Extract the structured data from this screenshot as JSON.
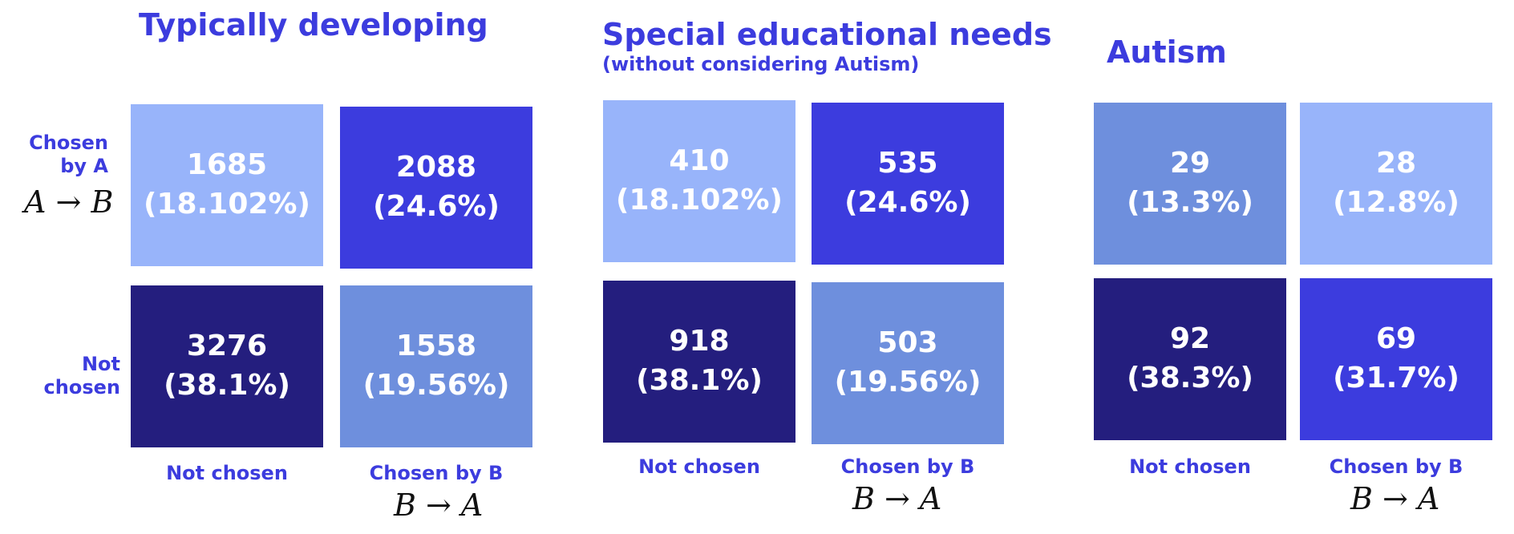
{
  "colors": {
    "lightest": "#98b4fa",
    "light": "#6e8fdd",
    "bright": "#3c3cde",
    "dark": "#241e7e",
    "accent": "#3c3cde"
  },
  "row_labels": {
    "chosen": "Chosen by A",
    "not_chosen": "Not chosen",
    "chosen_math": "A → B"
  },
  "col_labels": {
    "not_chosen": "Not chosen",
    "chosen": "Chosen by B",
    "chosen_math": "B → A"
  },
  "chart_data": [
    {
      "type": "table",
      "title": "Typically developing",
      "subtitle": "",
      "rows": [
        "Chosen by A",
        "Not chosen"
      ],
      "columns": [
        "Not chosen",
        "Chosen by B"
      ],
      "cells": [
        [
          {
            "count": "1685",
            "pct": "(18.102%)",
            "shade": "lightest"
          },
          {
            "count": "2088",
            "pct": "(24.6%)",
            "shade": "bright"
          }
        ],
        [
          {
            "count": "3276",
            "pct": "(38.1%)",
            "shade": "dark"
          },
          {
            "count": "1558",
            "pct": "(19.56%)",
            "shade": "light"
          }
        ]
      ]
    },
    {
      "type": "table",
      "title": "Special educational needs",
      "subtitle": "(without considering Autism)",
      "rows": [
        "Chosen by A",
        "Not chosen"
      ],
      "columns": [
        "Not chosen",
        "Chosen by B"
      ],
      "cells": [
        [
          {
            "count": "410",
            "pct": "(18.102%)",
            "shade": "lightest"
          },
          {
            "count": "535",
            "pct": "(24.6%)",
            "shade": "bright"
          }
        ],
        [
          {
            "count": "918",
            "pct": "(38.1%)",
            "shade": "dark"
          },
          {
            "count": "503",
            "pct": "(19.56%)",
            "shade": "light"
          }
        ]
      ]
    },
    {
      "type": "table",
      "title": "Autism",
      "subtitle": "",
      "rows": [
        "Chosen by A",
        "Not chosen"
      ],
      "columns": [
        "Not chosen",
        "Chosen by B"
      ],
      "cells": [
        [
          {
            "count": "29",
            "pct": "(13.3%)",
            "shade": "light"
          },
          {
            "count": "28",
            "pct": "(12.8%)",
            "shade": "lightest"
          }
        ],
        [
          {
            "count": "92",
            "pct": "(38.3%)",
            "shade": "dark"
          },
          {
            "count": "69",
            "pct": "(31.7%)",
            "shade": "bright"
          }
        ]
      ]
    }
  ]
}
